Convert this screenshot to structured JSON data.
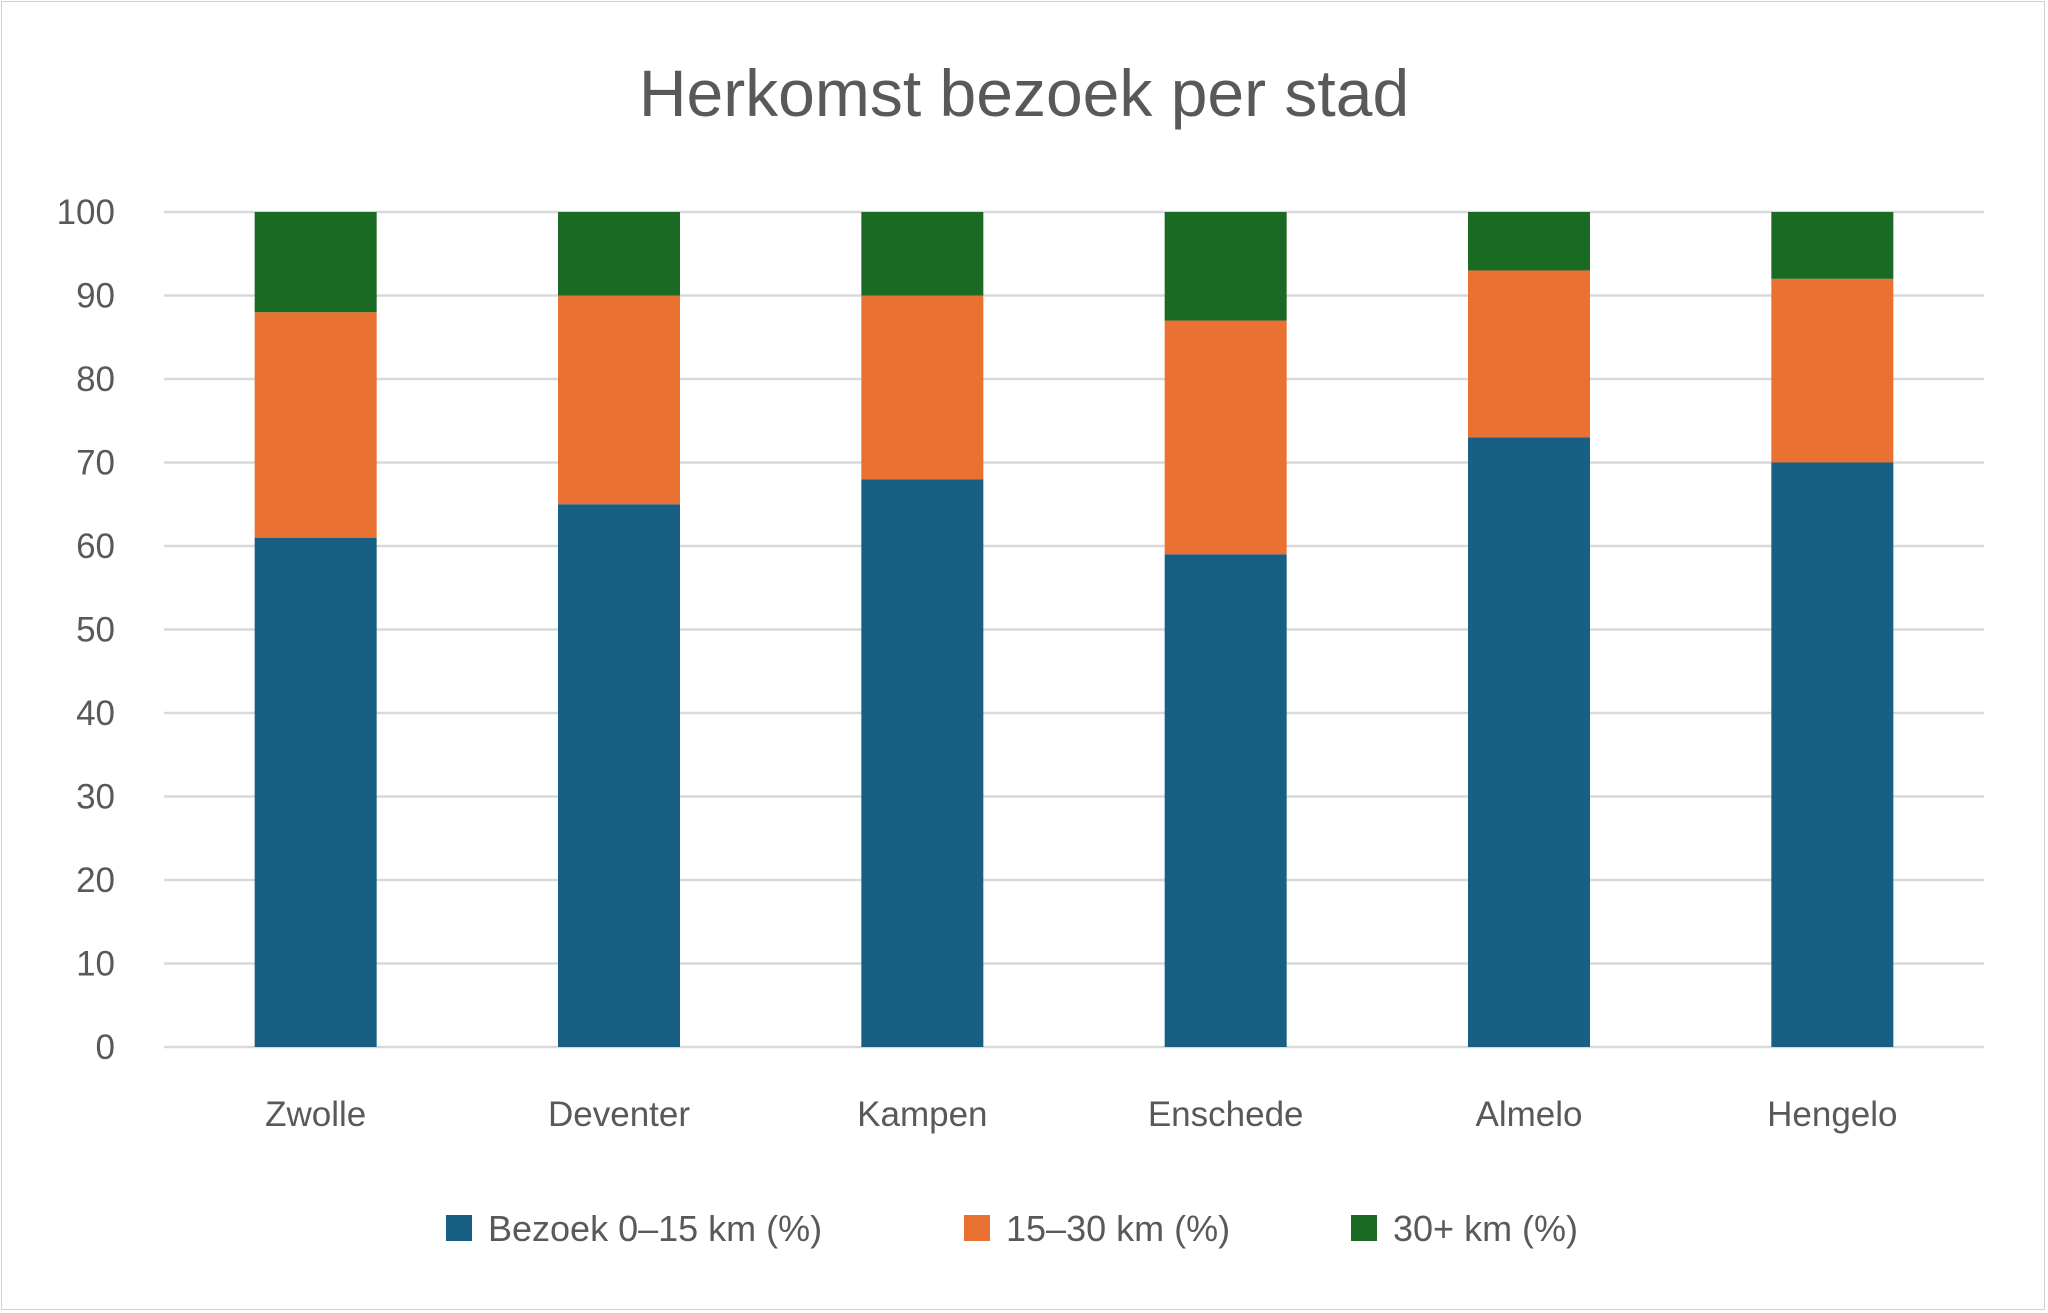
{
  "chart_data": {
    "type": "bar",
    "stacked": true,
    "title": "Herkomst bezoek per stad",
    "xlabel": "",
    "ylabel": "",
    "categories": [
      "Zwolle",
      "Deventer",
      "Kampen",
      "Enschede",
      "Almelo",
      "Hengelo"
    ],
    "series": [
      {
        "name": "Bezoek 0–15 km (%)",
        "color": "#176084",
        "values": [
          61,
          65,
          68,
          59,
          73,
          70
        ]
      },
      {
        "name": "15–30 km (%)",
        "color": "#E97132",
        "values": [
          27,
          25,
          22,
          28,
          20,
          22
        ]
      },
      {
        "name": "30+ km (%)",
        "color": "#1B6A24",
        "values": [
          12,
          10,
          10,
          13,
          7,
          8
        ]
      }
    ],
    "ylim": [
      0,
      100
    ],
    "yticks": [
      0,
      10,
      20,
      30,
      40,
      50,
      60,
      70,
      80,
      90,
      100
    ],
    "grid": true,
    "legend": "bottom"
  }
}
